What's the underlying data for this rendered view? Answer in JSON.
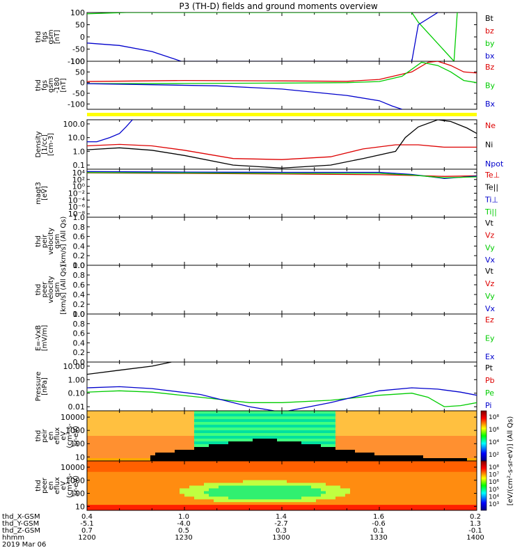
{
  "title": "P3 (TH-D) fields and ground moments overview",
  "footer": {
    "row_labels": [
      "thd_X-GSM",
      "thd_Y-GSM",
      "thd_Z-GSM",
      "hhmm",
      "2019 Mar 06"
    ],
    "ticks": [
      {
        "x": "0.4",
        "y": "-5.1",
        "z": "0.7",
        "hhmm": "1200"
      },
      {
        "x": "1.0",
        "y": "-4.0",
        "z": "0.5",
        "hhmm": "1230"
      },
      {
        "x": "1.4",
        "y": "-2.7",
        "z": "0.3",
        "hhmm": "1300"
      },
      {
        "x": "1.6",
        "y": "-0.6",
        "z": "0.1",
        "hhmm": "1330"
      },
      {
        "x": "0.2",
        "y": "1.3",
        "z": "-0.1",
        "hhmm": "1400"
      }
    ]
  },
  "colorbar": {
    "label": "[eV/(cm^2-s-sr-eV)] (All Qs)",
    "ticks_top": [
      "10^8",
      "10^6",
      "10^4",
      "10^2"
    ],
    "ticks_bottom": [
      "10^8",
      "10^7",
      "10^6",
      "10^5",
      "10^4",
      "10^3"
    ]
  },
  "colors": {
    "black": "#000000",
    "red": "#dd0000",
    "green": "#00cc00",
    "blue": "#0000cc",
    "yellow": "#ffff00"
  },
  "chart_data": [
    {
      "type": "line",
      "panel": "fgs_gsm",
      "ylabel": [
        "thd",
        "fgs",
        "gsm",
        "[nT]"
      ],
      "ylim": [
        -100,
        100
      ],
      "yticks": [
        "100",
        "50",
        "0",
        "-50",
        "-100"
      ],
      "legend": [
        {
          "name": "Bt",
          "color": "#000000"
        },
        {
          "name": "bz",
          "color": "#dd0000"
        },
        {
          "name": "by",
          "color": "#00cc00"
        },
        {
          "name": "bx",
          "color": "#0000cc"
        }
      ],
      "series": [
        {
          "name": "by",
          "color": "#00cc00",
          "x": [
            1200,
            1212,
            1340,
            1342,
            1353,
            1354
          ],
          "y": [
            95,
            100,
            100,
            60,
            -100,
            100
          ]
        },
        {
          "name": "bx",
          "color": "#0000cc",
          "x": [
            1200,
            1210,
            1220,
            1229,
            1340,
            1342,
            1348
          ],
          "y": [
            -25,
            -35,
            -60,
            -100,
            -100,
            50,
            100
          ]
        }
      ]
    },
    {
      "type": "line",
      "panel": "fgs_gsm_180",
      "ylabel": [
        "thd",
        "fgs",
        "gsm",
        "-180",
        "[nT]"
      ],
      "ylim": [
        -125,
        100
      ],
      "yticks": [
        "100",
        "50",
        "0",
        "-50",
        "-100"
      ],
      "legend": [
        {
          "name": "Bz",
          "color": "#dd0000"
        },
        {
          "name": "By",
          "color": "#00cc00"
        },
        {
          "name": "Bx",
          "color": "#0000cc"
        }
      ],
      "series": [
        {
          "name": "Bz",
          "color": "#dd0000",
          "x": [
            1200,
            1230,
            1300,
            1320,
            1330,
            1340,
            1345,
            1348,
            1352,
            1356,
            1360
          ],
          "y": [
            5,
            10,
            8,
            6,
            15,
            50,
            95,
            100,
            80,
            50,
            45
          ]
        },
        {
          "name": "By",
          "color": "#00cc00",
          "x": [
            1200,
            1230,
            1300,
            1320,
            1330,
            1337,
            1343,
            1348,
            1352,
            1356,
            1360
          ],
          "y": [
            -5,
            -4,
            -2,
            0,
            5,
            30,
            95,
            80,
            50,
            10,
            0
          ]
        },
        {
          "name": "Bx",
          "color": "#0000cc",
          "x": [
            1200,
            1220,
            1240,
            1300,
            1320,
            1330,
            1334,
            1337
          ],
          "y": [
            -5,
            -10,
            -15,
            -30,
            -60,
            -85,
            -110,
            -125
          ]
        }
      ]
    },
    {
      "type": "line",
      "panel": "density",
      "ylabel": [
        "Density",
        "[1/cc]",
        "[cm-3]"
      ],
      "ylim": [
        0.05,
        200
      ],
      "yscale": "log",
      "yticks": [
        "100.0",
        "10.0",
        "1.0",
        "0.1"
      ],
      "legend": [
        {
          "name": "Ne",
          "color": "#dd0000"
        },
        {
          "name": "Ni",
          "color": "#000000"
        },
        {
          "name": "Npot",
          "color": "#0000cc"
        }
      ],
      "series": [
        {
          "name": "Ne",
          "color": "#dd0000",
          "x": [
            1200,
            1210,
            1220,
            1230,
            1245,
            1300,
            1315,
            1325,
            1335,
            1342,
            1350,
            1360
          ],
          "y": [
            2.5,
            3.2,
            2.5,
            1.2,
            0.3,
            0.25,
            0.4,
            1.5,
            3,
            3,
            2,
            2
          ]
        },
        {
          "name": "Ni",
          "color": "#000000",
          "x": [
            1200,
            1210,
            1220,
            1230,
            1245,
            1300,
            1315,
            1325,
            1335,
            1338,
            1342,
            1348,
            1352,
            1357,
            1360
          ],
          "y": [
            1.3,
            1.8,
            1.2,
            0.5,
            0.1,
            0.06,
            0.1,
            0.3,
            1,
            10,
            60,
            200,
            150,
            50,
            20
          ]
        },
        {
          "name": "Npot",
          "color": "#0000cc",
          "x": [
            1200,
            1203,
            1207,
            1210,
            1212,
            1214
          ],
          "y": [
            5,
            5,
            10,
            20,
            60,
            200
          ]
        }
      ]
    },
    {
      "type": "line",
      "panel": "magt3",
      "ylabel": [
        "magt3",
        "[eV]"
      ],
      "ylim": [
        1e-09,
        100000.0
      ],
      "yscale": "log",
      "yticks": [
        "10^4",
        "10^2",
        "10^0",
        "10^-2",
        "10^-4",
        "10^-6",
        "10^-8"
      ],
      "legend": [
        {
          "name": "Te⊥",
          "color": "#dd0000"
        },
        {
          "name": "Te||",
          "color": "#000000"
        },
        {
          "name": "Ti⊥",
          "color": "#0000cc"
        },
        {
          "name": "Ti||",
          "color": "#00cc00"
        }
      ],
      "series": [
        {
          "name": "Te⊥",
          "color": "#dd0000",
          "x": [
            1200,
            1230,
            1300,
            1330,
            1340,
            1350,
            1360
          ],
          "y": [
            8000,
            6000,
            4000,
            2500,
            1500,
            800,
            1200
          ]
        },
        {
          "name": "Ti⊥",
          "color": "#0000cc",
          "x": [
            1200,
            1230,
            1300,
            1330,
            1340,
            1350,
            1360
          ],
          "y": [
            20000,
            15000,
            12000,
            12000,
            3000,
            200,
            1000
          ]
        },
        {
          "name": "Ti||",
          "color": "#00cc00",
          "x": [
            1200,
            1230,
            1300,
            1330,
            1340,
            1350,
            1360
          ],
          "y": [
            10000,
            8000,
            6000,
            6000,
            2000,
            300,
            600
          ]
        }
      ]
    },
    {
      "type": "line",
      "panel": "peir_velocity",
      "ylabel": [
        "thd",
        "peir",
        "velocity",
        "gsm",
        "[km/s] (All Qs)"
      ],
      "ylim": [
        0,
        1
      ],
      "yticks": [
        "1.0",
        "0.8",
        "0.6",
        "0.4",
        "0.2",
        "0.0"
      ],
      "legend": [
        {
          "name": "Vt",
          "color": "#000000"
        },
        {
          "name": "Vz",
          "color": "#dd0000"
        },
        {
          "name": "Vy",
          "color": "#00cc00"
        },
        {
          "name": "Vx",
          "color": "#0000cc"
        }
      ],
      "series": []
    },
    {
      "type": "line",
      "panel": "peer_velocity",
      "ylabel": [
        "thd",
        "peer",
        "velocity",
        "gsm",
        "[km/s] (All Qs)"
      ],
      "ylim": [
        0,
        1
      ],
      "yticks": [
        "1.0",
        "0.8",
        "0.6",
        "0.4",
        "0.2",
        "0.0"
      ],
      "legend": [
        {
          "name": "Vt",
          "color": "#000000"
        },
        {
          "name": "Vz",
          "color": "#dd0000"
        },
        {
          "name": "Vy",
          "color": "#00cc00"
        },
        {
          "name": "Vx",
          "color": "#0000cc"
        }
      ],
      "series": []
    },
    {
      "type": "line",
      "panel": "efield",
      "ylabel": [
        "E=-VxB",
        "[mV/m]"
      ],
      "ylim": [
        0,
        1
      ],
      "yticks": [
        "1.0",
        "0.8",
        "0.6",
        "0.4",
        "0.2",
        "0.0"
      ],
      "legend": [
        {
          "name": "Ez",
          "color": "#dd0000"
        },
        {
          "name": "Ey",
          "color": "#00cc00"
        },
        {
          "name": "Ex",
          "color": "#0000cc"
        }
      ],
      "series": []
    },
    {
      "type": "line",
      "panel": "pressure",
      "ylabel": [
        "Pressure",
        "[nPa]"
      ],
      "ylim": [
        0.005,
        20
      ],
      "yscale": "log",
      "yticks": [
        "10.00",
        "1.00",
        "0.10",
        "0.01"
      ],
      "legend": [
        {
          "name": "Pt",
          "color": "#000000"
        },
        {
          "name": "Pb",
          "color": "#dd0000"
        },
        {
          "name": "Pe",
          "color": "#00cc00"
        },
        {
          "name": "Pi",
          "color": "#0000cc"
        }
      ],
      "series": [
        {
          "name": "Pt",
          "color": "#000000",
          "x": [
            1200,
            1210,
            1220,
            1226
          ],
          "y": [
            2.5,
            5,
            10,
            20
          ]
        },
        {
          "name": "Pe",
          "color": "#00cc00",
          "x": [
            1200,
            1210,
            1220,
            1235,
            1250,
            1300,
            1315,
            1330,
            1340,
            1345,
            1350,
            1355,
            1360
          ],
          "y": [
            0.12,
            0.15,
            0.12,
            0.05,
            0.02,
            0.02,
            0.03,
            0.07,
            0.1,
            0.05,
            0.01,
            0.012,
            0.02
          ]
        },
        {
          "name": "Pi",
          "color": "#0000cc",
          "x": [
            1200,
            1210,
            1220,
            1235,
            1250,
            1300,
            1315,
            1330,
            1340,
            1348,
            1355,
            1360
          ],
          "y": [
            0.25,
            0.3,
            0.22,
            0.08,
            0.01,
            0.004,
            0.02,
            0.15,
            0.25,
            0.2,
            0.12,
            0.07
          ]
        }
      ]
    },
    {
      "type": "heatmap",
      "panel": "peir_en_eflux",
      "ylabel": [
        "thd",
        "peir",
        "en",
        "eflux",
        "eV",
        "(cm^2-s-",
        "sr-eV)"
      ],
      "ylim": [
        5,
        30000
      ],
      "yscale": "log",
      "yticks": [
        "10000",
        "1000",
        "100",
        "10"
      ]
    },
    {
      "type": "heatmap",
      "panel": "peer_en_eflux",
      "ylabel": [
        "thd",
        "peer",
        "en",
        "eflux",
        "eV",
        "(cm^2-s-",
        "sr-eV)"
      ],
      "ylim": [
        5,
        30000
      ],
      "yscale": "log",
      "yticks": [
        "10000",
        "1000",
        "100",
        "10"
      ]
    }
  ]
}
